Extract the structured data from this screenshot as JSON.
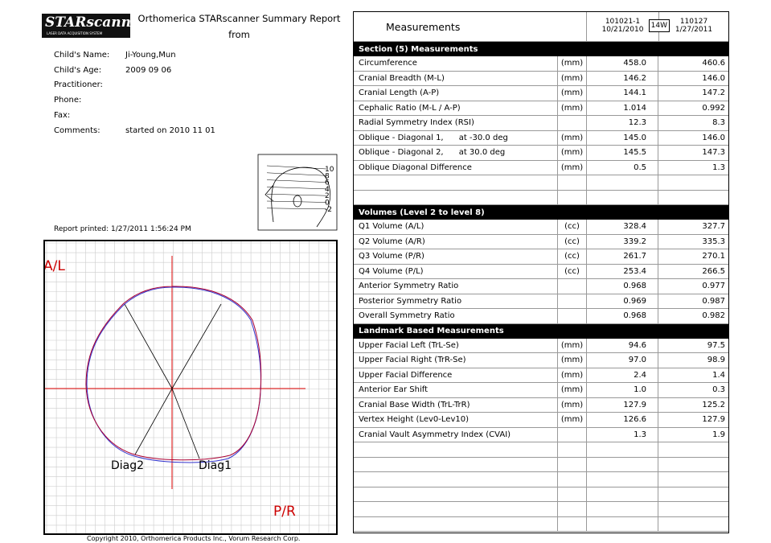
{
  "header": {
    "logo": "STARscanner",
    "logo_sub": "LASER DATA ACQUISITION SYSTEM",
    "title": "Orthomerica STARscanner Summary Report",
    "title2": "from"
  },
  "info": [
    {
      "label": "Child's Name:",
      "value": "Ji-Young,Mun"
    },
    {
      "label": "Child's Age:",
      "value": "2009 09 06"
    },
    {
      "label": "Practitioner:"
    },
    {
      "label": "Phone:"
    },
    {
      "label": "Fax:"
    },
    {
      "label": "Comments:",
      "value": "started on 2010 11 01"
    }
  ],
  "head_scale": [
    "10",
    "8",
    "6",
    "4",
    "2",
    "0",
    "-2"
  ],
  "report_printed": "Report printed: 1/27/2011 1:56:24 PM",
  "plot": {
    "top_label": "A/L",
    "bottom_label": "P/R",
    "diag1": "Diag1",
    "diag2": "Diag2"
  },
  "copyright": "Copyright 2010,  Orthomerica Products Inc., Vorum Research Corp.",
  "table": {
    "title": "Measurements",
    "scan1_id": "101021-1",
    "scan1_date": "10/21/2010",
    "interval": "14W",
    "scan2_id": "110127",
    "scan2_date": "1/27/2011",
    "sections": [
      {
        "name": "Section (5) Measurements",
        "rows": [
          [
            "Circumference",
            "(mm)",
            "458.0",
            "460.6"
          ],
          [
            "Cranial Breadth (M-L)",
            "(mm)",
            "146.2",
            "146.0"
          ],
          [
            "Cranial Length (A-P)",
            "(mm)",
            "144.1",
            "147.2"
          ],
          [
            "Cephalic Ratio (M-L / A-P)",
            "(mm)",
            "1.014",
            "0.992"
          ],
          [
            "Radial Symmetry Index (RSI)",
            null,
            "12.3",
            "8.3"
          ],
          [
            "Oblique - Diagonal 1,      at -30.0 deg",
            "(mm)",
            "145.0",
            "146.0"
          ],
          [
            "Oblique - Diagonal 2,      at 30.0 deg",
            "(mm)",
            "145.5",
            "147.3"
          ],
          [
            "Oblique Diagonal Difference",
            "(mm)",
            "0.5",
            "1.3"
          ]
        ]
      },
      {
        "name": "Volumes (Level 2 to level 8)",
        "rows": [
          [
            "Q1 Volume (A/L)",
            "(cc)",
            "328.4",
            "327.7"
          ],
          [
            "Q2 Volume (A/R)",
            "(cc)",
            "339.2",
            "335.3"
          ],
          [
            "Q3 Volume (P/R)",
            "(cc)",
            "261.7",
            "270.1"
          ],
          [
            "Q4 Volume (P/L)",
            "(cc)",
            "253.4",
            "266.5"
          ],
          [
            "Anterior Symmetry Ratio",
            null,
            "0.968",
            "0.977"
          ],
          [
            "Posterior Symmetry Ratio",
            null,
            "0.969",
            "0.987"
          ],
          [
            "Overall Symmetry Ratio",
            null,
            "0.968",
            "0.982"
          ]
        ]
      },
      {
        "name": "Landmark Based Measurements",
        "rows": [
          [
            "Upper Facial Left (TrL-Se)",
            "(mm)",
            "94.6",
            "97.5"
          ],
          [
            "Upper Facial Right (TrR-Se)",
            "(mm)",
            "97.0",
            "98.9"
          ],
          [
            "Upper Facial Difference",
            "(mm)",
            "2.4",
            "1.4"
          ],
          [
            "Anterior Ear Shift",
            "(mm)",
            "1.0",
            "0.3"
          ],
          [
            "Cranial Base Width (TrL-TrR)",
            "(mm)",
            "127.9",
            "125.2"
          ],
          [
            "Vertex Height (Lev0-Lev10)",
            "(mm)",
            "126.6",
            "127.9"
          ],
          [
            "Cranial Vault Asymmetry Index (CVAI)",
            null,
            "1.3",
            "1.9"
          ]
        ]
      }
    ]
  }
}
